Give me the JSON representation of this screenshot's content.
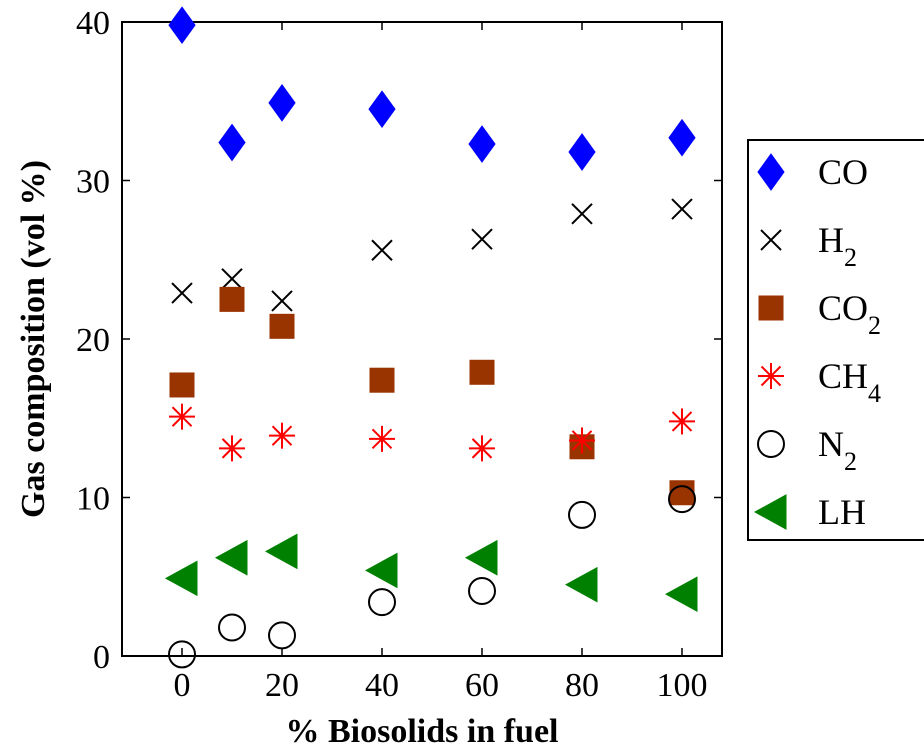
{
  "chart_data": {
    "type": "scatter",
    "title": "",
    "xlabel": "% Biosolids in fuel",
    "ylabel": "Gas composition (vol %)",
    "xlim": [
      -12,
      108
    ],
    "ylim": [
      0,
      40
    ],
    "xticks": [
      0,
      20,
      40,
      60,
      80,
      100
    ],
    "yticks": [
      0,
      10,
      20,
      30,
      40
    ],
    "grid": false,
    "legend_position": "right-outside",
    "x": [
      0,
      10,
      20,
      40,
      60,
      80,
      100
    ],
    "series": [
      {
        "name": "CO",
        "base": "CO",
        "sub": "",
        "marker": "diamond",
        "color": "#0000ff",
        "values": [
          39.8,
          32.4,
          34.9,
          34.5,
          32.3,
          31.8,
          32.7
        ]
      },
      {
        "name": "H2",
        "base": "H",
        "sub": "2",
        "marker": "x",
        "color": "#000000",
        "values": [
          22.9,
          23.8,
          22.4,
          25.6,
          26.3,
          27.9,
          28.2
        ]
      },
      {
        "name": "CO2",
        "base": "CO",
        "sub": "2",
        "marker": "square",
        "color": "#993300",
        "values": [
          17.1,
          22.5,
          20.8,
          17.4,
          17.9,
          13.2,
          10.3
        ]
      },
      {
        "name": "CH4",
        "base": "CH",
        "sub": "4",
        "marker": "asterisk",
        "color": "#ff0000",
        "values": [
          15.1,
          13.1,
          13.9,
          13.7,
          13.1,
          13.6,
          14.8
        ]
      },
      {
        "name": "N2",
        "base": "N",
        "sub": "2",
        "marker": "circle",
        "color": "#000000",
        "values": [
          0.1,
          1.8,
          1.3,
          3.4,
          4.1,
          8.9,
          9.9
        ]
      },
      {
        "name": "LH",
        "base": "LH",
        "sub": "",
        "marker": "triangle-left",
        "color": "#008000",
        "values": [
          4.9,
          6.2,
          6.6,
          5.4,
          6.2,
          4.5,
          3.9
        ]
      }
    ]
  }
}
